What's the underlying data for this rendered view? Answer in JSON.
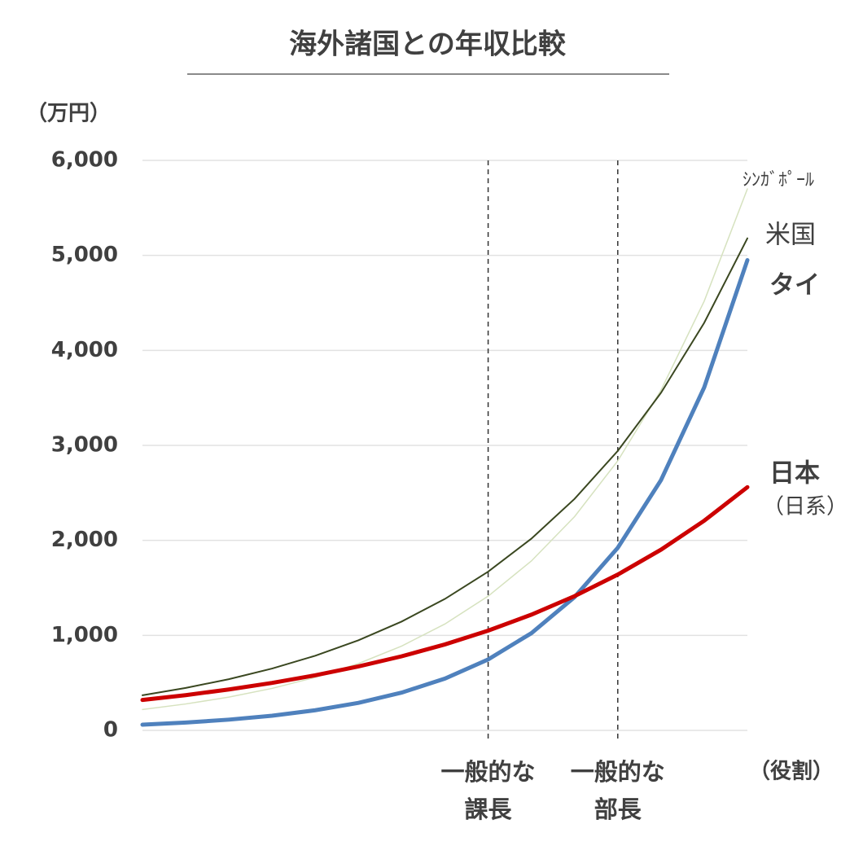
{
  "chart_data": {
    "type": "line",
    "title": "海外諸国との年収比較",
    "y_unit": "（万円）",
    "x_label": "（役割）",
    "categories": [
      null,
      null,
      null,
      null,
      null,
      null,
      null,
      null,
      "一般的な\n課長",
      null,
      null,
      "一般的な\n部長",
      null,
      null,
      null
    ],
    "series": [
      {
        "name": "ｼﾝｶﾞﾎﾟｰﾙ",
        "color": "#d6e2bf",
        "line_width": 1.5,
        "values": [
          220,
          278,
          350,
          442,
          558,
          704,
          888,
          1120,
          1413,
          1783,
          2250,
          2838,
          3581,
          4518,
          5700
        ]
      },
      {
        "name": "米国",
        "color": "#3a4720",
        "line_width": 2,
        "values": [
          370,
          447,
          539,
          651,
          786,
          949,
          1146,
          1384,
          1671,
          2018,
          2437,
          2942,
          3553,
          4290,
          5180
        ]
      },
      {
        "name": "タイ",
        "color": "#4f81bd",
        "line_width": 5,
        "values": [
          60,
          82,
          113,
          154,
          212,
          290,
          398,
          545,
          747,
          1023,
          1403,
          1922,
          2634,
          3610,
          4950
        ]
      },
      {
        "name": "日本",
        "note": "（日系）",
        "color": "#cc0000",
        "line_width": 5,
        "values": [
          320,
          371,
          431,
          500,
          580,
          673,
          780,
          905,
          1050,
          1218,
          1413,
          1640,
          1902,
          2207,
          2560
        ]
      }
    ],
    "ylim": [
      0,
      6000
    ],
    "yticks": [
      0,
      {
        "value": 1000,
        "label": "1,000"
      },
      {
        "value": 2000,
        "label": "2,000"
      },
      {
        "value": 3000,
        "label": "3,000"
      },
      {
        "value": 4000,
        "label": "4,000"
      },
      {
        "value": 5000,
        "label": "5,000"
      },
      {
        "value": 6000,
        "label": "6,000"
      }
    ],
    "grid": true
  }
}
